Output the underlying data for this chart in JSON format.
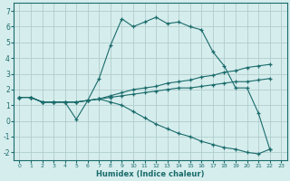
{
  "xlabel": "Humidex (Indice chaleur)",
  "background_color": "#d6eded",
  "grid_color": "#b0cccc",
  "line_color": "#1a6b6b",
  "xlim": [
    -0.5,
    23.5
  ],
  "ylim": [
    -2.5,
    7.5
  ],
  "xticks": [
    0,
    1,
    2,
    3,
    4,
    5,
    6,
    7,
    8,
    9,
    10,
    11,
    12,
    13,
    14,
    15,
    16,
    17,
    18,
    19,
    20,
    21,
    22,
    23
  ],
  "yticks": [
    -2,
    -1,
    0,
    1,
    2,
    3,
    4,
    5,
    6,
    7
  ],
  "series": [
    {
      "x": [
        0,
        1,
        2,
        3,
        4,
        5,
        6,
        7,
        8,
        9,
        10,
        11,
        12,
        13,
        14,
        15,
        16,
        17,
        18,
        19,
        20,
        21,
        22
      ],
      "y": [
        1.5,
        1.5,
        1.2,
        1.2,
        1.2,
        0.1,
        1.3,
        2.7,
        4.8,
        6.5,
        6.0,
        6.3,
        6.6,
        6.2,
        6.3,
        6.0,
        5.8,
        4.4,
        3.5,
        2.1,
        2.1,
        0.5,
        -1.8
      ]
    },
    {
      "x": [
        0,
        1,
        2,
        3,
        4,
        5,
        6,
        7,
        8,
        9,
        10,
        11,
        12,
        13,
        14,
        15,
        16,
        17,
        18,
        19,
        20,
        21,
        22
      ],
      "y": [
        1.5,
        1.5,
        1.2,
        1.2,
        1.2,
        1.2,
        1.3,
        1.4,
        1.6,
        1.8,
        2.0,
        2.1,
        2.2,
        2.4,
        2.5,
        2.6,
        2.8,
        2.9,
        3.1,
        3.2,
        3.4,
        3.5,
        3.6
      ]
    },
    {
      "x": [
        0,
        1,
        2,
        3,
        4,
        5,
        6,
        7,
        8,
        9,
        10,
        11,
        12,
        13,
        14,
        15,
        16,
        17,
        18,
        19,
        20,
        21,
        22
      ],
      "y": [
        1.5,
        1.5,
        1.2,
        1.2,
        1.2,
        1.2,
        1.3,
        1.4,
        1.5,
        1.6,
        1.7,
        1.8,
        1.9,
        2.0,
        2.1,
        2.1,
        2.2,
        2.3,
        2.4,
        2.5,
        2.5,
        2.6,
        2.7
      ]
    },
    {
      "x": [
        0,
        1,
        2,
        3,
        4,
        5,
        6,
        7,
        8,
        9,
        10,
        11,
        12,
        13,
        14,
        15,
        16,
        17,
        18,
        19,
        20,
        21,
        22
      ],
      "y": [
        1.5,
        1.5,
        1.2,
        1.2,
        1.2,
        1.2,
        1.3,
        1.4,
        1.2,
        1.0,
        0.6,
        0.2,
        -0.2,
        -0.5,
        -0.8,
        -1.0,
        -1.3,
        -1.5,
        -1.7,
        -1.8,
        -2.0,
        -2.1,
        -1.8
      ]
    }
  ]
}
